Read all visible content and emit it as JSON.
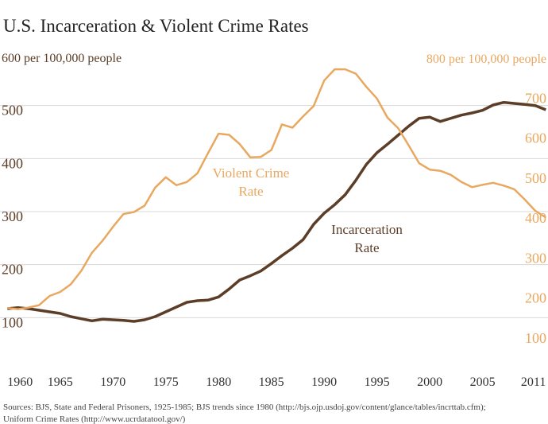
{
  "chart_data": {
    "type": "line",
    "title": "U.S. Incarceration & Violent Crime Rates",
    "x": [
      1960,
      1961,
      1962,
      1963,
      1964,
      1965,
      1966,
      1967,
      1968,
      1969,
      1970,
      1971,
      1972,
      1973,
      1974,
      1975,
      1976,
      1977,
      1978,
      1979,
      1980,
      1981,
      1982,
      1983,
      1984,
      1985,
      1986,
      1987,
      1988,
      1989,
      1990,
      1991,
      1992,
      1993,
      1994,
      1995,
      1996,
      1997,
      1998,
      1999,
      2000,
      2001,
      2002,
      2003,
      2004,
      2005,
      2006,
      2007,
      2008,
      2009,
      2010,
      2011
    ],
    "series": [
      {
        "name": "Incarceration Rate",
        "color": "#5c3d28",
        "axis": "y",
        "label": [
          "Incarceration",
          "Rate"
        ],
        "values": [
          117,
          119,
          117,
          114,
          111,
          108,
          102,
          98,
          94,
          97,
          96,
          95,
          93,
          96,
          102,
          111,
          120,
          129,
          132,
          133,
          139,
          154,
          171,
          179,
          188,
          202,
          217,
          231,
          247,
          276,
          297,
          313,
          332,
          359,
          389,
          411,
          427,
          444,
          461,
          476,
          478,
          470,
          476,
          482,
          486,
          491,
          501,
          506,
          504,
          502,
          500,
          492
        ]
      },
      {
        "name": "Violent Crime Rate",
        "color": "#e8a860",
        "axis": "y2",
        "label": [
          "Violent Crime",
          "Rate"
        ],
        "values": [
          161,
          158,
          162,
          168,
          191,
          201,
          220,
          254,
          299,
          329,
          364,
          396,
          401,
          417,
          462,
          488,
          468,
          476,
          498,
          548,
          597,
          594,
          571,
          538,
          539,
          556,
          620,
          612,
          640,
          666,
          730,
          758,
          758,
          747,
          714,
          685,
          637,
          611,
          568,
          523,
          507,
          504,
          494,
          476,
          463,
          469,
          474,
          467,
          458,
          432,
          404,
          387
        ]
      }
    ],
    "xlim": [
      1959.3,
      2011.2
    ],
    "xticks": [
      1960,
      1965,
      1970,
      1975,
      1980,
      1985,
      1990,
      1995,
      2000,
      2005,
      2011
    ],
    "ylim": [
      0,
      600
    ],
    "yticks": [
      100,
      200,
      300,
      400,
      500,
      {
        "value": 600,
        "label": "600 per 100,000 people"
      }
    ],
    "y2lim": [
      0,
      800
    ],
    "y2ticks": [
      100,
      200,
      300,
      400,
      500,
      600,
      700,
      {
        "value": 800,
        "label": "800 per 100,000 people"
      }
    ],
    "grid": true,
    "source": [
      "Sources: BJS, State and Federal Prisoners, 1925-1985; BJS trends since 1980 (http://bjs.ojp.usdoj.gov/content/glance/tables/incrttab.cfm);",
      "Uniform Crime Rates (http://www.ucrdatatool.gov/)"
    ]
  }
}
